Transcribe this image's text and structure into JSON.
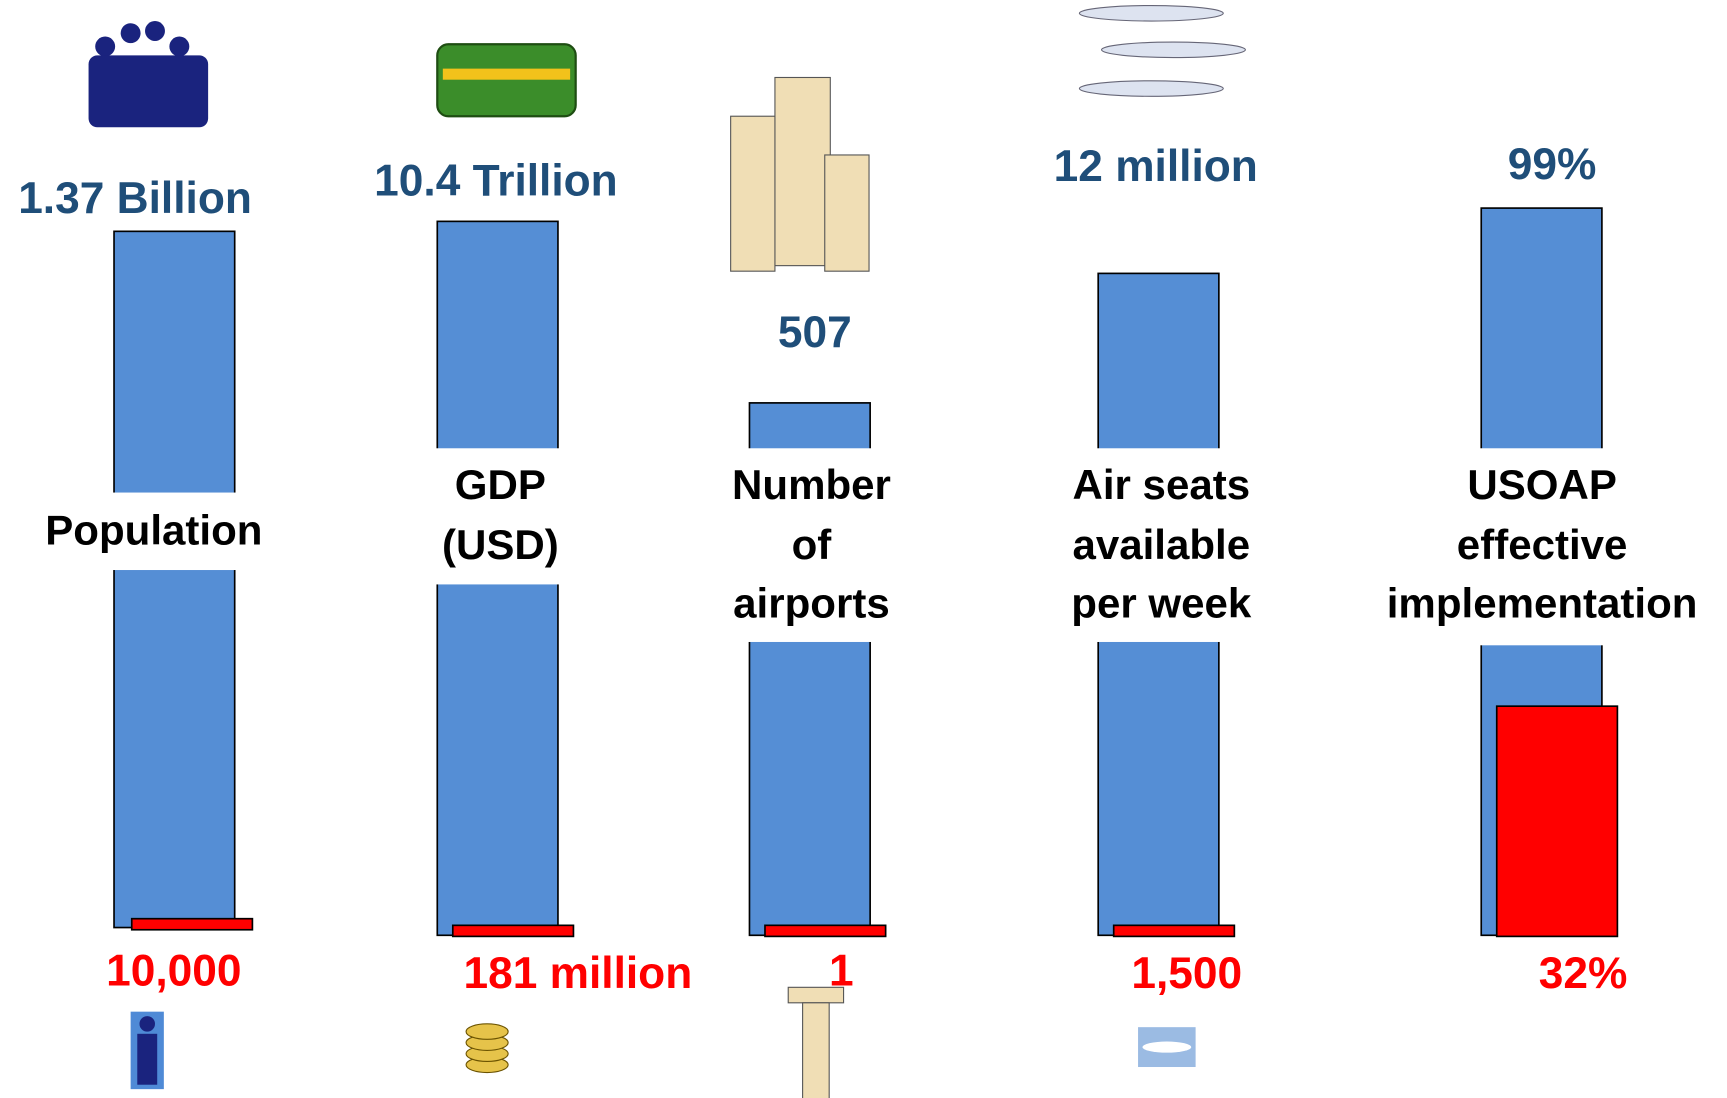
{
  "columns": [
    {
      "label_lines": [
        "Population"
      ],
      "top_value": "1.37 Billion",
      "bottom_value": "10,000"
    },
    {
      "label_lines": [
        "GDP",
        "(USD)"
      ],
      "top_value": "10.4 Trillion",
      "bottom_value": "181 million"
    },
    {
      "label_lines": [
        "Number",
        "of",
        "airports"
      ],
      "top_value": "507",
      "bottom_value": "1"
    },
    {
      "label_lines": [
        "Air seats",
        "available",
        "per week"
      ],
      "top_value": "12 million",
      "bottom_value": "1,500"
    },
    {
      "label_lines": [
        "USOAP",
        "effective",
        "implementation"
      ],
      "top_value": "99%",
      "bottom_value": "32%"
    }
  ]
}
